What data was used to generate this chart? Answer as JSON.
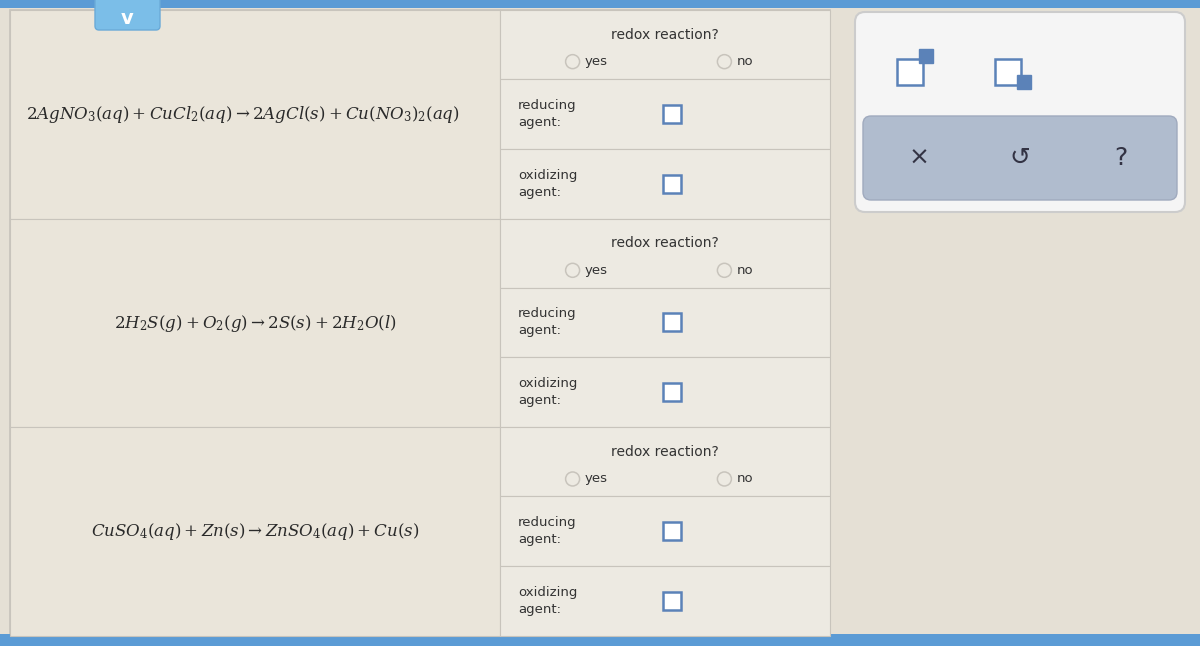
{
  "bg_color": "#e5e0d5",
  "table_bg": "#eae5da",
  "right_col_bg": "#edeae2",
  "border_color": "#c8c4bc",
  "text_color": "#333333",
  "blue_color": "#5b82b8",
  "blue_dark": "#4a6fa0",
  "panel_bg": "#f2f2f2",
  "btn_bg": "#b8c4d8",
  "header_blue": "#5b9bd5",
  "reactions_plain": [
    "2AgNO₃(aq) + CuCl₂(aq) → 2AgCl(s) + Cu(NO₃)₂(aq)",
    "2H₂S(g) + O₂(g) → 2S(s) + 2H₂O(l)",
    "CuSO₄(aq) + Zn(s) → ZnSO₄(aq) + Cu(s)"
  ],
  "reactions_latex": [
    "$2AgNO_3(aq) + CuCl_2(aq) \\rightarrow 2AgCl(s) + Cu(NO_3)_2(aq)$",
    "$2H_2S(g) + O_2(g) \\rightarrow 2S(s) + 2H_2O(l)$",
    "$CuSO_4(aq) + Zn(s) \\rightarrow ZnSO_4(aq) + Cu(s)$"
  ],
  "figsize": [
    12.0,
    6.46
  ],
  "dpi": 100
}
